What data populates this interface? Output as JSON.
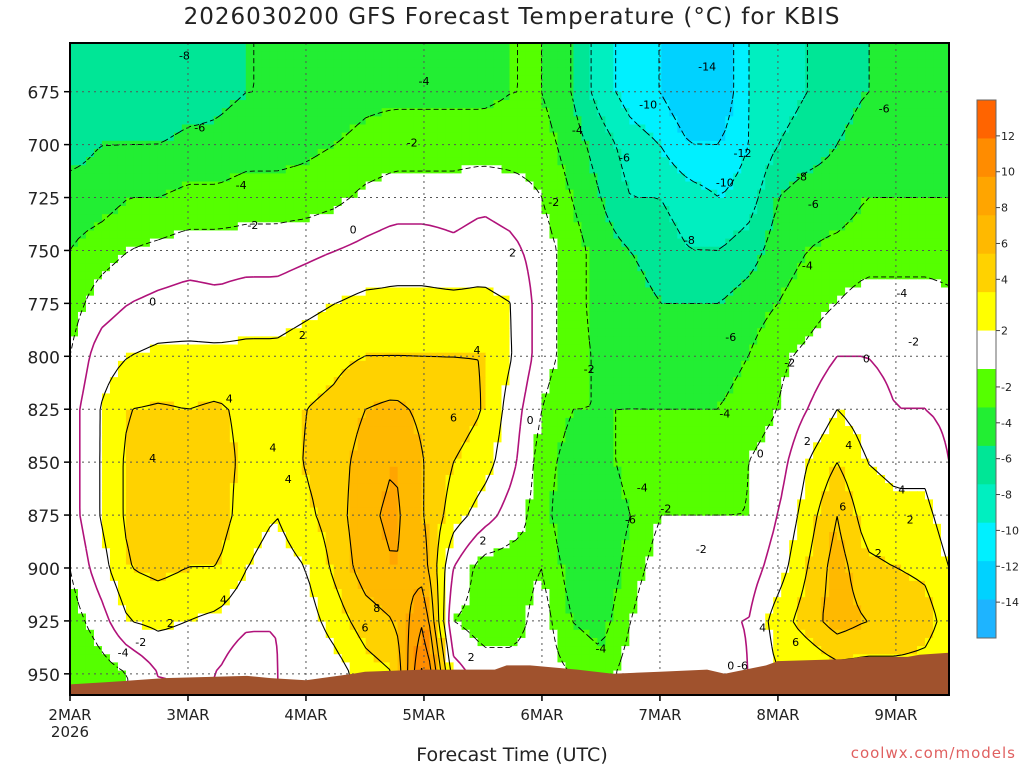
{
  "title": "2026030200 GFS Forecast Temperature (°C) for KBIS",
  "credit": "coolwx.com/models",
  "chart_data": {
    "type": "heatmap",
    "title": "2026030200 GFS Forecast Temperature (°C) for KBIS",
    "xlabel": "Forecast Time (UTC)",
    "ylabel": "",
    "x_ticks": [
      "2MAR",
      "3MAR",
      "4MAR",
      "5MAR",
      "6MAR",
      "7MAR",
      "8MAR",
      "9MAR"
    ],
    "x_year_label": "2026",
    "x_range_days": [
      0,
      7.45
    ],
    "y_ticks": [
      675,
      700,
      725,
      750,
      775,
      800,
      825,
      850,
      875,
      900,
      925,
      950
    ],
    "y_range": [
      652,
      960
    ],
    "y_unit": "hPa",
    "colorbar": {
      "tick_labels": [
        "12",
        "10",
        "8",
        "6",
        "4",
        "2",
        "-2",
        "-4",
        "-6",
        "-8",
        "-10",
        "-12",
        "-14"
      ],
      "tick_values": [
        12,
        10,
        8,
        6,
        4,
        2,
        -2,
        -4,
        -6,
        -8,
        -10,
        -12,
        -14
      ],
      "bands": [
        {
          "range": [
            12,
            14
          ],
          "color": "#ff6400"
        },
        {
          "range": [
            10,
            12
          ],
          "color": "#ff8c00"
        },
        {
          "range": [
            8,
            10
          ],
          "color": "#ffa500"
        },
        {
          "range": [
            6,
            8
          ],
          "color": "#ffb900"
        },
        {
          "range": [
            4,
            6
          ],
          "color": "#ffd200"
        },
        {
          "range": [
            2,
            4
          ],
          "color": "#ffff00"
        },
        {
          "range": [
            -2,
            2
          ],
          "color": "#ffffff"
        },
        {
          "range": [
            -4,
            -2
          ],
          "color": "#55ff00"
        },
        {
          "range": [
            -6,
            -4
          ],
          "color": "#22ee33"
        },
        {
          "range": [
            -8,
            -6
          ],
          "color": "#00e696"
        },
        {
          "range": [
            -10,
            -8
          ],
          "color": "#00efc0"
        },
        {
          "range": [
            -12,
            -10
          ],
          "color": "#00f0ff"
        },
        {
          "range": [
            -14,
            -12
          ],
          "color": "#00d2ff"
        },
        {
          "range": [
            -16,
            -14
          ],
          "color": "#1eb4ff"
        }
      ]
    },
    "profiles": [
      {
        "day": 0.0,
        "t": [
          -8,
          -7,
          -5,
          -4,
          -3,
          -2,
          -1,
          -1,
          -1,
          -2,
          -3,
          -4
        ]
      },
      {
        "day": 0.25,
        "t": [
          -8,
          -6,
          -5,
          -3,
          -1,
          1,
          2,
          2,
          2,
          1,
          -1,
          -3
        ]
      },
      {
        "day": 0.5,
        "t": [
          -8,
          -6,
          -4,
          -2,
          0,
          2,
          4,
          4.5,
          4.5,
          4,
          2,
          -2
        ]
      },
      {
        "day": 0.75,
        "t": [
          -7.5,
          -6,
          -4,
          -1.5,
          0.5,
          2.5,
          4.2,
          4.8,
          5,
          4.5,
          2.5,
          0
        ]
      },
      {
        "day": 1.0,
        "t": [
          -7,
          -5.5,
          -3.5,
          -1,
          0.8,
          2.5,
          4,
          4.5,
          5,
          4,
          2,
          0
        ]
      },
      {
        "day": 1.25,
        "t": [
          -6.5,
          -5.5,
          -3.5,
          -1,
          0.5,
          2.5,
          4.3,
          4.8,
          5,
          4,
          1.5,
          0
        ]
      },
      {
        "day": 1.5,
        "t": [
          -6,
          -5,
          -3,
          -1,
          1,
          2.5,
          3.5,
          3.5,
          3,
          2,
          0.5,
          -2
        ]
      },
      {
        "day": 1.75,
        "t": [
          -6,
          -5,
          -3,
          -1,
          1,
          2.5,
          3,
          2.5,
          2,
          1,
          0,
          0
        ]
      },
      {
        "day": 2.0,
        "t": [
          -5.5,
          -4.5,
          -3,
          -0.5,
          1.5,
          3,
          4,
          4.2,
          3.5,
          2,
          1,
          0
        ]
      },
      {
        "day": 2.25,
        "t": [
          -5,
          -4,
          -2.5,
          0,
          2,
          3.5,
          4.5,
          5,
          5,
          4.5,
          3,
          1
        ]
      },
      {
        "day": 2.5,
        "t": [
          -4.5,
          -3.5,
          -1.5,
          0.5,
          2.5,
          4,
          6,
          7,
          7.5,
          7,
          5,
          3
        ]
      },
      {
        "day": 2.75,
        "t": [
          -4.5,
          -3,
          -1,
          1,
          2.5,
          4,
          6.5,
          8,
          8.5,
          8,
          6,
          4
        ]
      },
      {
        "day": 3.0,
        "t": [
          -4.5,
          -3,
          -1,
          1,
          2.5,
          4,
          5.5,
          6,
          6,
          7,
          10,
          13
        ]
      },
      {
        "day": 3.25,
        "t": [
          -4.5,
          -3,
          -1,
          0.5,
          2.5,
          4,
          5,
          4,
          3,
          0,
          -2,
          1
        ]
      },
      {
        "day": 3.5,
        "t": [
          -4.5,
          -3,
          -0.5,
          1,
          2.5,
          4,
          4,
          3,
          1,
          -3,
          -3,
          -1
        ]
      },
      {
        "day": 3.75,
        "t": [
          -4,
          -3,
          -1,
          0.5,
          2,
          2,
          1,
          0.5,
          -1,
          -3,
          -3,
          -1
        ]
      },
      {
        "day": 4.0,
        "t": [
          -4,
          -3,
          -2,
          -1,
          -1,
          -1,
          -2,
          -3,
          -3,
          -2,
          -1,
          -1
        ]
      },
      {
        "day": 4.25,
        "t": [
          -6,
          -5,
          -4,
          -3,
          -3,
          -3,
          -4,
          -5,
          -6,
          -5,
          -4,
          -2
        ]
      },
      {
        "day": 4.5,
        "t": [
          -9,
          -7,
          -6,
          -5,
          -5,
          -4.5,
          -4,
          -5,
          -6,
          -6,
          -5,
          -3
        ]
      },
      {
        "day": 4.75,
        "t": [
          -11,
          -9,
          -8,
          -6,
          -5,
          -4.5,
          -4,
          -3,
          -4,
          -3,
          -2,
          -1
        ]
      },
      {
        "day": 5.0,
        "t": [
          -12,
          -10,
          -8,
          -7,
          -6,
          -5,
          -4,
          -3,
          -2,
          -1,
          0,
          0
        ]
      },
      {
        "day": 5.25,
        "t": [
          -14,
          -12,
          -9,
          -8,
          -6,
          -5,
          -4,
          -3,
          -2,
          -1,
          -1,
          0
        ]
      },
      {
        "day": 5.5,
        "t": [
          -14,
          -12,
          -10,
          -8,
          -6,
          -5,
          -4,
          -3,
          -2,
          -1,
          0,
          -1
        ]
      },
      {
        "day": 5.75,
        "t": [
          -10,
          -10,
          -9,
          -7,
          -5,
          -4,
          -3,
          -2,
          -2,
          -1,
          0,
          0
        ]
      },
      {
        "day": 6.0,
        "t": [
          -9,
          -8,
          -6,
          -5,
          -4,
          -2.5,
          -2,
          -1,
          0,
          1,
          3,
          2
        ]
      },
      {
        "day": 6.25,
        "t": [
          -8,
          -7,
          -5,
          -4,
          -3,
          -1.5,
          0,
          2,
          3,
          4,
          5,
          2
        ]
      },
      {
        "day": 6.5,
        "t": [
          -7,
          -6,
          -5,
          -3.5,
          -2,
          0,
          2,
          4,
          6,
          7,
          7,
          3
        ]
      },
      {
        "day": 6.75,
        "t": [
          -6,
          -5,
          -4,
          -3,
          -1,
          0,
          1,
          2,
          3,
          4.5,
          6,
          3
        ]
      },
      {
        "day": 7.0,
        "t": [
          -6,
          -5,
          -4,
          -3,
          -1,
          -0.5,
          0,
          1.5,
          2.5,
          4,
          6,
          3
        ]
      },
      {
        "day": 7.25,
        "t": [
          -6,
          -5,
          -4,
          -3,
          -1,
          -0.5,
          0,
          1.5,
          2.5,
          3.5,
          5,
          3
        ]
      },
      {
        "day": 7.45,
        "t": [
          -6,
          -5,
          -4,
          -3,
          -1.5,
          -1,
          -0.5,
          0,
          1,
          2,
          3,
          2
        ]
      }
    ],
    "contour_labels": [
      {
        "day": 0.97,
        "p": 658,
        "text": "-8"
      },
      {
        "day": 3.0,
        "p": 670,
        "text": "-4"
      },
      {
        "day": 5.4,
        "p": 663,
        "text": "-14"
      },
      {
        "day": 4.9,
        "p": 681,
        "text": "-10"
      },
      {
        "day": 6.9,
        "p": 683,
        "text": "-6"
      },
      {
        "day": 1.1,
        "p": 692,
        "text": "-6"
      },
      {
        "day": 4.3,
        "p": 693,
        "text": "-4"
      },
      {
        "day": 2.9,
        "p": 699,
        "text": "-2"
      },
      {
        "day": 4.7,
        "p": 706,
        "text": "-6"
      },
      {
        "day": 5.7,
        "p": 704,
        "text": "-12"
      },
      {
        "day": 1.45,
        "p": 719,
        "text": "-4"
      },
      {
        "day": 5.55,
        "p": 718,
        "text": "-10"
      },
      {
        "day": 6.2,
        "p": 715,
        "text": "-8"
      },
      {
        "day": 4.1,
        "p": 727,
        "text": "-2"
      },
      {
        "day": 6.3,
        "p": 728,
        "text": "-6"
      },
      {
        "day": 1.55,
        "p": 738,
        "text": "-2"
      },
      {
        "day": 2.4,
        "p": 740,
        "text": "0"
      },
      {
        "day": 5.25,
        "p": 745,
        "text": "-8"
      },
      {
        "day": 3.75,
        "p": 751,
        "text": "2"
      },
      {
        "day": 6.25,
        "p": 757,
        "text": "-4"
      },
      {
        "day": 0.7,
        "p": 774,
        "text": "0"
      },
      {
        "day": 7.05,
        "p": 770,
        "text": "-4"
      },
      {
        "day": 1.97,
        "p": 790,
        "text": "2"
      },
      {
        "day": 5.6,
        "p": 791,
        "text": "-6"
      },
      {
        "day": 6.75,
        "p": 801,
        "text": "0"
      },
      {
        "day": 7.15,
        "p": 793,
        "text": "-2"
      },
      {
        "day": 3.45,
        "p": 797,
        "text": "4"
      },
      {
        "day": 6.1,
        "p": 803,
        "text": "-2"
      },
      {
        "day": 4.4,
        "p": 806,
        "text": "-2"
      },
      {
        "day": 1.35,
        "p": 820,
        "text": "4"
      },
      {
        "day": 3.25,
        "p": 829,
        "text": "6"
      },
      {
        "day": 3.9,
        "p": 830,
        "text": "0"
      },
      {
        "day": 5.55,
        "p": 827,
        "text": "-4"
      },
      {
        "day": 6.25,
        "p": 840,
        "text": "2"
      },
      {
        "day": 6.6,
        "p": 842,
        "text": "4"
      },
      {
        "day": 1.72,
        "p": 843,
        "text": "4"
      },
      {
        "day": 5.85,
        "p": 846,
        "text": "0"
      },
      {
        "day": 0.7,
        "p": 848,
        "text": "4"
      },
      {
        "day": 1.85,
        "p": 858,
        "text": "4"
      },
      {
        "day": 4.85,
        "p": 862,
        "text": "-4"
      },
      {
        "day": 5.05,
        "p": 872,
        "text": "-2"
      },
      {
        "day": 6.55,
        "p": 871,
        "text": "6"
      },
      {
        "day": 7.05,
        "p": 863,
        "text": "4"
      },
      {
        "day": 7.12,
        "p": 877,
        "text": "2"
      },
      {
        "day": 4.75,
        "p": 877,
        "text": "-6"
      },
      {
        "day": 3.5,
        "p": 887,
        "text": "2"
      },
      {
        "day": 5.35,
        "p": 891,
        "text": "-2"
      },
      {
        "day": 6.85,
        "p": 893,
        "text": "2"
      },
      {
        "day": 1.3,
        "p": 915,
        "text": "4"
      },
      {
        "day": 2.6,
        "p": 919,
        "text": "8"
      },
      {
        "day": 0.85,
        "p": 926,
        "text": "2"
      },
      {
        "day": 2.5,
        "p": 928,
        "text": "6"
      },
      {
        "day": 5.87,
        "p": 928,
        "text": "4"
      },
      {
        "day": 6.15,
        "p": 935,
        "text": "6"
      },
      {
        "day": 0.45,
        "p": 940,
        "text": "-4"
      },
      {
        "day": 0.6,
        "p": 935,
        "text": "-2"
      },
      {
        "day": 3.4,
        "p": 942,
        "text": "2"
      },
      {
        "day": 4.5,
        "p": 938,
        "text": "-4"
      },
      {
        "day": 5.6,
        "p": 946,
        "text": "0"
      },
      {
        "day": 5.7,
        "p": 946,
        "text": "-6"
      }
    ]
  }
}
